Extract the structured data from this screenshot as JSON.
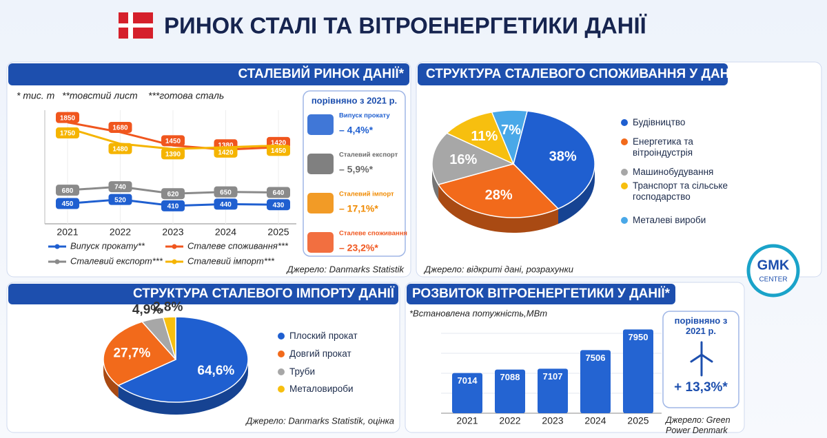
{
  "header": {
    "title": "РИНОК СТАЛІ ТА ВІТРОЕНЕРГЕТИКИ ДАНІЇ"
  },
  "logo": {
    "name": "GMK",
    "sub": "CENTER"
  },
  "chart_data": [
    {
      "type": "line",
      "title": "СТАЛЕВИЙ РИНОК ДАНІЇ*",
      "notes": [
        "* тис. т",
        "**товстий лист",
        "***готова сталь"
      ],
      "categories": [
        "2021",
        "2022",
        "2023",
        "2024",
        "2025"
      ],
      "series": [
        {
          "name": "Випуск прокату**",
          "color": "#1f5fd0",
          "values": [
            450,
            520,
            410,
            440,
            430
          ]
        },
        {
          "name": "Сталеве споживання***",
          "color": "#f0561e",
          "values": [
            1850,
            1680,
            1450,
            1380,
            1420
          ]
        },
        {
          "name": "Сталевий експорт***",
          "color": "#8a8a8a",
          "values": [
            680,
            740,
            620,
            650,
            640
          ]
        },
        {
          "name": "Сталевий імпорт***",
          "color": "#f5b400",
          "values": [
            1750,
            1480,
            1390,
            1420,
            1450
          ]
        }
      ],
      "ylim": [
        100,
        2000
      ],
      "source": "Джерело: Danmarks Statistik",
      "comparison": {
        "title": "порівняно з 2021 р.",
        "items": [
          {
            "label": "Випуск прокату",
            "change": "– 4,4%*"
          },
          {
            "label": "Сталевий експорт",
            "change": "– 5,9%*"
          },
          {
            "label": "Сталевий імпорт",
            "change": "– 17,1%*"
          },
          {
            "label": "Сталеве споживання",
            "change": "– 23,2%*"
          }
        ]
      }
    },
    {
      "type": "pie",
      "title": "СТРУКТУРА СТАЛЕВОГО СПОЖИВАННЯ У ДАНІЇ",
      "labels": [
        "Будівництво",
        "Енергетика та вітроіндустрія",
        "Машинобудування",
        "Транспорт та сільське господарство",
        "Металеві вироби"
      ],
      "values": [
        38,
        28,
        16,
        11,
        7
      ],
      "value_labels": [
        "38%",
        "28%",
        "16%",
        "11%",
        "7%"
      ],
      "colors": [
        "#1f5fd0",
        "#f26a1b",
        "#a7a7a7",
        "#f7bf0f",
        "#49a8e8"
      ],
      "source": "Джерело: відкриті дані, розрахунки"
    },
    {
      "type": "pie",
      "title": "СТРУКТУРА СТАЛЕВОГО ІМПОРТУ ДАНІЇ",
      "labels": [
        "Плоский прокат",
        "Довгий прокат",
        "Труби",
        "Металовироби"
      ],
      "values": [
        64.6,
        27.7,
        4.9,
        2.8
      ],
      "value_labels": [
        "64,6%",
        "27,7%",
        "4,9%",
        "2,8%"
      ],
      "colors": [
        "#1f5fd0",
        "#f26a1b",
        "#a7a7a7",
        "#f7bf0f"
      ],
      "source": "Джерело: Danmarks Statistik, оцінка"
    },
    {
      "type": "bar",
      "title": "РОЗВИТОК ВІТРОЕНЕРГЕТИКИ У ДАНІЇ*",
      "subtitle": "*Встановлена потужність,МВт",
      "categories": [
        "2021",
        "2022",
        "2023",
        "2024",
        "2025"
      ],
      "values": [
        7014,
        7088,
        7107,
        7506,
        7950
      ],
      "color": "#2464d2",
      "ylim": [
        6150,
        8000
      ],
      "source": "Джерело: Green Power Denmark",
      "comparison": {
        "title": "порівняно з 2021 р.",
        "change": "+ 13,3%*"
      }
    }
  ]
}
